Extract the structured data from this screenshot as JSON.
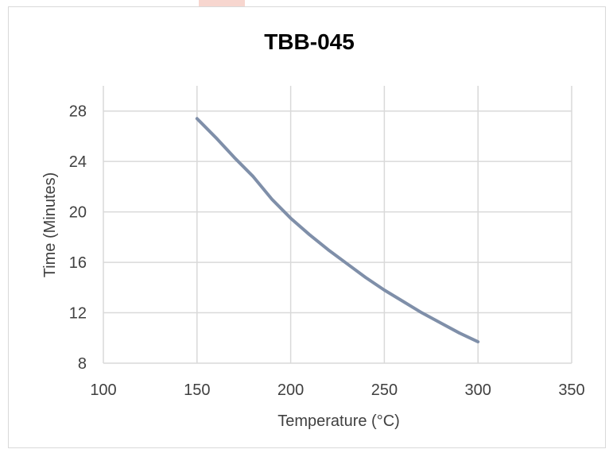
{
  "chart_data": {
    "type": "line",
    "title": "TBB-045",
    "xlabel": "Temperature (°C)",
    "ylabel": "Time (Minutes)",
    "xlim": [
      100,
      350
    ],
    "ylim": [
      8,
      30
    ],
    "x_ticks": [
      100,
      150,
      200,
      250,
      300,
      350
    ],
    "y_ticks": [
      8,
      12,
      16,
      20,
      24,
      28
    ],
    "grid": true,
    "legend": "none",
    "series": [
      {
        "color": "#7f8fa9",
        "x": [
          150,
          160,
          170,
          180,
          190,
          200,
          210,
          220,
          230,
          240,
          250,
          260,
          270,
          280,
          290,
          300
        ],
        "y": [
          27.4,
          25.9,
          24.3,
          22.8,
          21.0,
          19.5,
          18.2,
          17.0,
          15.9,
          14.8,
          13.8,
          12.9,
          12.0,
          11.2,
          10.4,
          9.7
        ]
      }
    ]
  },
  "colors": {
    "grid": "#d9d9d9",
    "axis_text": "#404040"
  }
}
